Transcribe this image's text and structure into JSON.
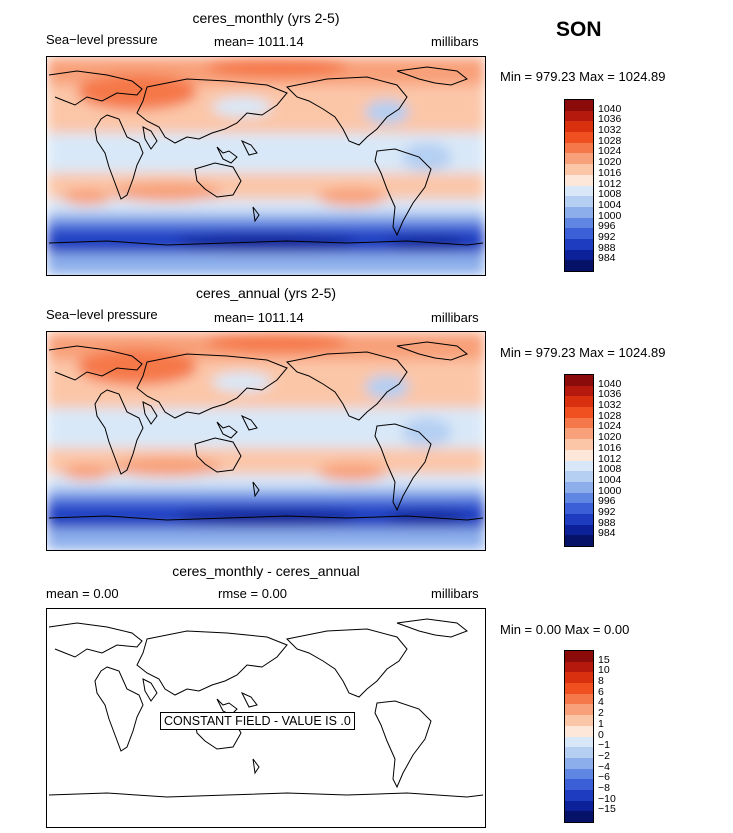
{
  "season": "SON",
  "panels": [
    {
      "title": "ceres_monthly (yrs 2-5)",
      "left_label": "Sea−level pressure",
      "center_label": "mean= 1011.14",
      "right_label": "millibars",
      "minmax": "Min = 979.23 Max = 1024.89",
      "colorbar": {
        "labels": [
          "1040",
          "1036",
          "1032",
          "1028",
          "1024",
          "1020",
          "1016",
          "1012",
          "1008",
          "1004",
          "1000",
          "996",
          "992",
          "988",
          "984"
        ],
        "colors": [
          "#8b0a0a",
          "#b5190d",
          "#d9300f",
          "#f0501f",
          "#f5784a",
          "#f8a079",
          "#fbc6a8",
          "#fde7d9",
          "#d9e8f8",
          "#b4cff2",
          "#8caeeb",
          "#5f86e2",
          "#3a5fd6",
          "#1d3cc0",
          "#0c2199",
          "#061268"
        ]
      }
    },
    {
      "title": "ceres_annual (yrs 2-5)",
      "left_label": "Sea−level pressure",
      "center_label": "mean= 1011.14",
      "right_label": "millibars",
      "minmax": "Min = 979.23 Max = 1024.89",
      "colorbar": {
        "labels": [
          "1040",
          "1036",
          "1032",
          "1028",
          "1024",
          "1020",
          "1016",
          "1012",
          "1008",
          "1004",
          "1000",
          "996",
          "992",
          "988",
          "984"
        ],
        "colors": [
          "#8b0a0a",
          "#b5190d",
          "#d9300f",
          "#f0501f",
          "#f5784a",
          "#f8a079",
          "#fbc6a8",
          "#fde7d9",
          "#d9e8f8",
          "#b4cff2",
          "#8caeeb",
          "#5f86e2",
          "#3a5fd6",
          "#1d3cc0",
          "#0c2199",
          "#061268"
        ]
      }
    },
    {
      "title": "ceres_monthly - ceres_annual",
      "left_label": "mean =     0.00",
      "center_label": "rmse =     0.00",
      "right_label": "millibars",
      "minmax": "Min =    0.00 Max =    0.00",
      "constant_note": "CONSTANT FIELD - VALUE IS .0",
      "colorbar": {
        "labels": [
          "15",
          "10",
          "8",
          "6",
          "4",
          "2",
          "1",
          "0",
          "−1",
          "−2",
          "−4",
          "−6",
          "−8",
          "−10",
          "−15"
        ],
        "colors": [
          "#8b0a0a",
          "#b5190d",
          "#d9300f",
          "#f0501f",
          "#f5784a",
          "#f8a079",
          "#fbc6a8",
          "#fde7d9",
          "#d9e8f8",
          "#b4cff2",
          "#8caeeb",
          "#5f86e2",
          "#3a5fd6",
          "#1d3cc0",
          "#0c2199",
          "#061268"
        ]
      }
    }
  ]
}
